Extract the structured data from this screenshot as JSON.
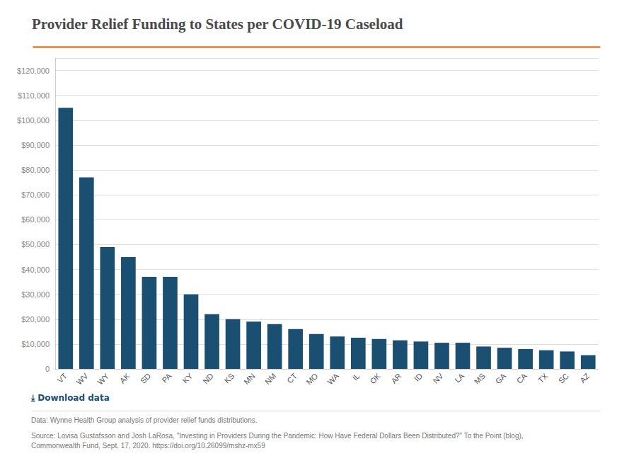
{
  "chart_data": {
    "type": "bar",
    "title": "Provider Relief Funding to States per COVID-19 Caseload",
    "categories": [
      "VT",
      "WV",
      "WY",
      "AK",
      "SD",
      "PA",
      "KY",
      "ND",
      "KS",
      "MN",
      "NM",
      "CT",
      "MO",
      "WA",
      "IL",
      "OK",
      "AR",
      "ID",
      "NV",
      "LA",
      "MS",
      "GA",
      "CA",
      "TX",
      "SC",
      "AZ"
    ],
    "values": [
      105000,
      77000,
      49000,
      45000,
      37000,
      37000,
      30000,
      22000,
      20000,
      19000,
      18000,
      16000,
      14000,
      13000,
      12500,
      12000,
      11500,
      11000,
      10500,
      10500,
      9000,
      8500,
      8000,
      7500,
      7000,
      5500
    ],
    "color": "#1a4f72",
    "ylim": [
      0,
      125000
    ],
    "yticks": [
      0,
      {
        "value": 10000,
        "label": "$10,000"
      },
      {
        "value": 20000,
        "label": "$20,000"
      },
      {
        "value": 30000,
        "label": "$30,000"
      },
      {
        "value": 40000,
        "label": "$40,000"
      },
      {
        "value": 50000,
        "label": "$50,000"
      },
      {
        "value": 60000,
        "label": "$60,000"
      },
      {
        "value": 70000,
        "label": "$70,000"
      },
      {
        "value": 80000,
        "label": "$80,000"
      },
      {
        "value": 90000,
        "label": "$90,000"
      },
      {
        "value": 100000,
        "label": "$100,000"
      },
      {
        "value": 110000,
        "label": "$110,000"
      },
      {
        "value": 120000,
        "label": "$120,000"
      }
    ],
    "grid": true,
    "annotations": [
      "⤓ Download data",
      "Data: Wynne Health Group analysis of provider relief funds distributions.",
      "Source: Lovisa Gustafsson and Josh LaRosa, \"Investing in Providers During the Pandemic: How Have Federal Dollars Been Distributed?\" To the Point (blog),\nCommonwealth Fund, Sept. 17, 2020. https://doi.org/10.26099/mshz-mx59"
    ]
  }
}
